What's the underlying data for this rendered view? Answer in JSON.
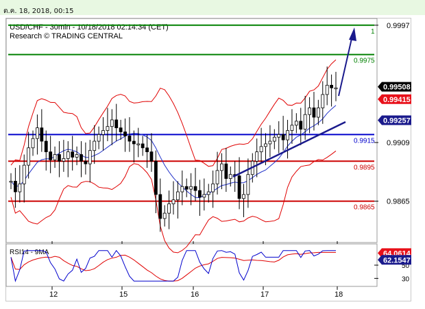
{
  "header": {
    "timestamp": "ต.ค. 18, 2018, 00:15"
  },
  "chart_data": {
    "type": "candlestick",
    "title": "USD/CHF - 30min - 10/18/2018 02:14:34 (CET)",
    "subtitle": "Research © TRADING CENTRAL",
    "ylim": [
      0.9835,
      1.0001
    ],
    "x_ticks": [
      "12",
      "15",
      "16",
      "17",
      "18"
    ],
    "y_ticks": [
      "0.9997",
      "0.9909",
      "0.9865"
    ],
    "horizontal_levels": [
      {
        "label": "1",
        "value": 0.9997,
        "color": "#008000"
      },
      {
        "label": "0.9975",
        "value": 0.9975,
        "color": "#008000"
      },
      {
        "label": "0.9915",
        "value": 0.9915,
        "color": "#0000cc"
      },
      {
        "label": "0.9895",
        "value": 0.9895,
        "color": "#cc0000"
      },
      {
        "label": "0.9865",
        "value": 0.9865,
        "color": "#cc0000"
      }
    ],
    "price_badges": [
      {
        "value": "0.99508",
        "bg": "#000000",
        "fg": "#ffffff"
      },
      {
        "value": "0.99415",
        "bg": "#e8101a",
        "fg": "#ffffff"
      },
      {
        "value": "0.99257",
        "bg": "#1a1a8c",
        "fg": "#ffffff"
      }
    ],
    "candles_close": [
      0.988,
      0.9872,
      0.9878,
      0.9892,
      0.9905,
      0.9912,
      0.992,
      0.991,
      0.9902,
      0.9896,
      0.99,
      0.9895,
      0.9897,
      0.9902,
      0.9898,
      0.99,
      0.9895,
      0.9893,
      0.9903,
      0.991,
      0.9915,
      0.9918,
      0.9921,
      0.9926,
      0.992,
      0.9917,
      0.9914,
      0.991,
      0.9908,
      0.9908,
      0.9905,
      0.9902,
      0.9895,
      0.987,
      0.9852,
      0.9856,
      0.9863,
      0.9866,
      0.9872,
      0.9876,
      0.9874,
      0.9876,
      0.9873,
      0.9868,
      0.987,
      0.9872,
      0.9878,
      0.9888,
      0.9893,
      0.9882,
      0.9885,
      0.9884,
      0.9867,
      0.987,
      0.9885,
      0.9895,
      0.9902,
      0.9906,
      0.9908,
      0.991,
      0.9913,
      0.9915,
      0.9911,
      0.9918,
      0.9922,
      0.9925,
      0.9919,
      0.993,
      0.9935,
      0.9928,
      0.9935,
      0.9945,
      0.9952,
      0.995,
      0.995
    ],
    "rsi": {
      "name": "RSI14 - 9MA",
      "ticks": [
        "50",
        "30"
      ],
      "badges": [
        {
          "value": "64.0614",
          "bg": "#e8101a",
          "fg": "#ffffff"
        },
        {
          "value": "62.1547",
          "bg": "#1a1a8c",
          "fg": "#ffffff"
        }
      ],
      "ylim": [
        20,
        80
      ]
    },
    "colors": {
      "candle": "#000000",
      "bands": "#e00000",
      "ma": "#2030c8",
      "trendline": "#1a1a8c",
      "arrow": "#1a1a8c",
      "rsi": "#0000cc",
      "rsi_ma": "#e00000"
    }
  }
}
